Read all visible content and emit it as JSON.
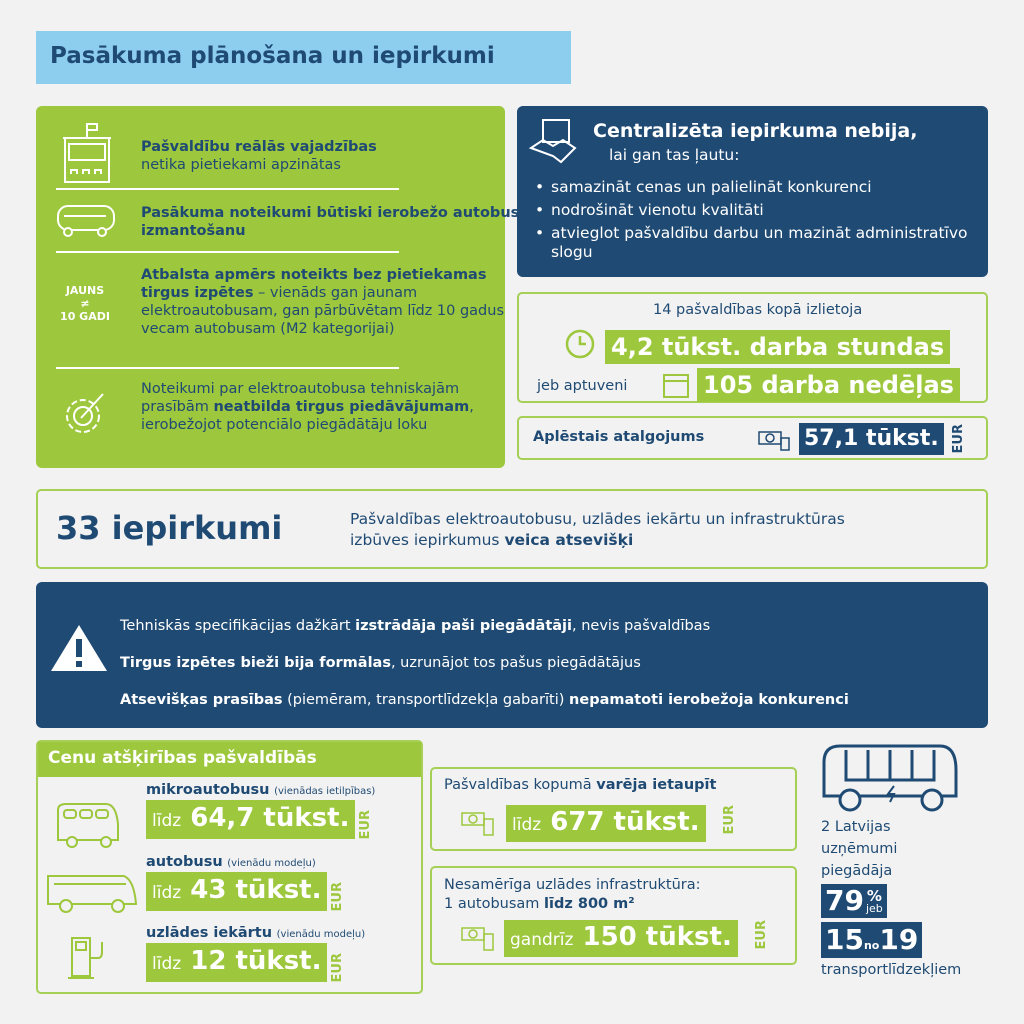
{
  "title": "Pasākuma plānošana un iepirkumi",
  "green_panel": {
    "item1": {
      "bold": "Pašvaldību reālās vajadzības",
      "text": "netika pietiekami apzinātas"
    },
    "item2": {
      "bold": "Pasākuma noteikumi būtiski ierobežo autobusa izmantošanu"
    },
    "item3": {
      "badge_top": "JAUNS",
      "badge_sym": "≠",
      "badge_bottom": "10 GADI",
      "bold": "Atbalsta apmērs noteikts bez pietiekamas tirgus izpētes",
      "text": " – vienāds gan jaunam elektroautobusam, gan pārbūvētam līdz 10 gadus vecam autobusam (M2 kategorijai)"
    },
    "item4": {
      "text1": "Noteikumi par elektroautobusa tehniskajām prasībām ",
      "bold": "neatbilda tirgus piedāvājumam",
      "text2": ", ierobežojot potenciālo piegādātāju loku"
    }
  },
  "central": {
    "title": "Centralizēta iepirkuma nebija,",
    "subtitle": "lai gan tas ļautu:",
    "bullets": [
      "samazināt cenas un palielināt konkurenci",
      "nodrošināt vienotu kvalitāti",
      "atvieglot pašvaldību darbu un mazināt administratīvo slogu"
    ]
  },
  "hours": {
    "intro": "14 pašvaldības kopā izlietoja",
    "value1": "4,2 tūkst. darba stundas",
    "or": "jeb aptuveni",
    "value2": "105 darba nedēļas"
  },
  "salary": {
    "label": "Aplēstais atalgojums",
    "value": "57,1 tūkst.",
    "currency": "EUR"
  },
  "procurements": {
    "count": "33 iepirkumi",
    "text": "Pašvaldības elektroautobusu, uzlādes iekārtu un infrastruktūras izbūves iepirkumus ",
    "bold": "veica atsevišķi"
  },
  "warning": {
    "lines": [
      [
        {
          "t": "Tehniskās specifikācijas dažkārt "
        },
        {
          "b": "izstrādāja paši piegādātāji"
        },
        {
          "t": ", nevis pašvaldības"
        }
      ],
      [
        {
          "b": "Tirgus izpētes bieži bija formālas"
        },
        {
          "t": ", uzrunājot tos pašus piegādātājus"
        }
      ],
      [
        {
          "b": "Atsevišķas prasības"
        },
        {
          "t": " (piemēram, transportlīdzekļa gabarīti) "
        },
        {
          "b": "nepamatoti ierobežoja konkurenci"
        }
      ]
    ]
  },
  "prices": {
    "header": "Cenu atšķirības pašvaldībās",
    "items": [
      {
        "name": "mikroautobusu",
        "note": "(vienādas ietilpības)",
        "prefix": "līdz",
        "value": "64,7 tūkst.",
        "currency": "EUR"
      },
      {
        "name": "autobusu",
        "note": "(vienādu modeļu)",
        "prefix": "līdz",
        "value": "43 tūkst.",
        "currency": "EUR"
      },
      {
        "name": "uzlādes iekārtu",
        "note": "(vienādu modeļu)",
        "prefix": "līdz",
        "value": "12 tūkst.",
        "currency": "EUR"
      }
    ]
  },
  "savings": {
    "text": "Pašvaldības kopumā ",
    "bold": "varēja ietaupīt",
    "prefix": "līdz",
    "value": "677 tūkst.",
    "currency": "EUR"
  },
  "infra": {
    "line1": "Nesamērīga uzlādes infrastruktūra:",
    "line2": "1 autobusam ",
    "bold": "līdz 800 m²",
    "prefix": "gandrīz",
    "value": "150 tūkst.",
    "currency": "EUR"
  },
  "suppliers": {
    "text": "2 Latvijas uzņēmumi piegādāja",
    "pct": "79",
    "pct_sign": "%",
    "jeb": "jeb",
    "n": "15",
    "no": "no",
    "total": "19",
    "tail": "transportlīdzekļiem"
  },
  "colors": {
    "green": "#9dc73c",
    "navy": "#1f4a73",
    "title_bg": "#8dcdee"
  }
}
